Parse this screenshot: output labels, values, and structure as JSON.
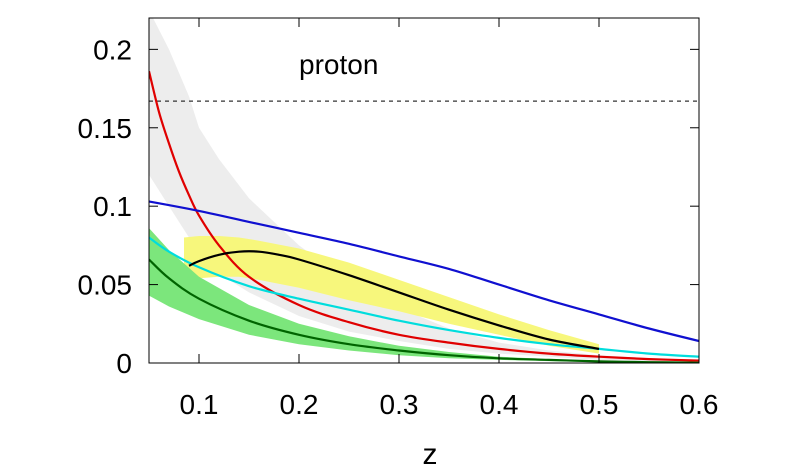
{
  "chart_data": {
    "type": "line",
    "title": "",
    "xlabel": "z",
    "ylabel": "",
    "xlim": [
      0.05,
      0.6
    ],
    "ylim": [
      0,
      0.22
    ],
    "x_ticks": [
      0.1,
      0.2,
      0.3,
      0.4,
      0.5,
      0.6
    ],
    "x_tick_labels": [
      "0.1",
      "0.2",
      "0.3",
      "0.4",
      "0.5",
      "0.6"
    ],
    "y_ticks": [
      0,
      0.05,
      0.1,
      0.15,
      0.2
    ],
    "y_tick_labels": [
      "0",
      "0.05",
      "0.1",
      "0.15",
      "0.2"
    ],
    "grid": false,
    "legend": "none",
    "annotations": [
      {
        "text": "proton",
        "x": 0.2,
        "y": 0.19
      }
    ],
    "reference_line": {
      "y": 0.167,
      "style": "dashed",
      "color": "#333333"
    },
    "bands": [
      {
        "color": "#ededed",
        "x": [
          0.05,
          0.07,
          0.09,
          0.1,
          0.12,
          0.15,
          0.2,
          0.25,
          0.3,
          0.35,
          0.4,
          0.45,
          0.5,
          0.55,
          0.6
        ],
        "upper": [
          0.225,
          0.2,
          0.17,
          0.15,
          0.13,
          0.105,
          0.075,
          0.052,
          0.035,
          0.022,
          0.013,
          0.008,
          0.005,
          0.003,
          0.002
        ],
        "lower": [
          0.12,
          0.1,
          0.08,
          0.07,
          0.057,
          0.045,
          0.03,
          0.02,
          0.014,
          0.009,
          0.006,
          0.004,
          0.002,
          0.001,
          0.0
        ]
      },
      {
        "color": "#f7f77c",
        "x": [
          0.085,
          0.1,
          0.12,
          0.14,
          0.16,
          0.2,
          0.25,
          0.3,
          0.35,
          0.4,
          0.45,
          0.5
        ],
        "upper": [
          0.08,
          0.081,
          0.081,
          0.08,
          0.078,
          0.073,
          0.064,
          0.053,
          0.042,
          0.031,
          0.021,
          0.012
        ],
        "lower": [
          0.052,
          0.054,
          0.055,
          0.055,
          0.053,
          0.048,
          0.04,
          0.033,
          0.025,
          0.018,
          0.011,
          0.006
        ]
      },
      {
        "color": "#7ce67c",
        "x": [
          0.05,
          0.07,
          0.1,
          0.15,
          0.2,
          0.25,
          0.3,
          0.35,
          0.4,
          0.45,
          0.5,
          0.55,
          0.6
        ],
        "upper": [
          0.086,
          0.072,
          0.055,
          0.037,
          0.025,
          0.017,
          0.011,
          0.007,
          0.004,
          0.0025,
          0.0015,
          0.0008,
          0.0004
        ],
        "lower": [
          0.043,
          0.036,
          0.028,
          0.018,
          0.012,
          0.008,
          0.005,
          0.003,
          0.002,
          0.0012,
          0.0006,
          0.0003,
          0.0001
        ]
      }
    ],
    "series": [
      {
        "color": "#e00000",
        "x": [
          0.05,
          0.06,
          0.07,
          0.08,
          0.09,
          0.1,
          0.12,
          0.15,
          0.2,
          0.25,
          0.3,
          0.35,
          0.4,
          0.45,
          0.5,
          0.55,
          0.6
        ],
        "y": [
          0.186,
          0.16,
          0.14,
          0.122,
          0.107,
          0.094,
          0.075,
          0.055,
          0.037,
          0.026,
          0.018,
          0.013,
          0.009,
          0.006,
          0.004,
          0.0025,
          0.0015
        ]
      },
      {
        "color": "#1010d0",
        "x": [
          0.05,
          0.1,
          0.15,
          0.2,
          0.25,
          0.3,
          0.35,
          0.4,
          0.45,
          0.5,
          0.55,
          0.6
        ],
        "y": [
          0.103,
          0.097,
          0.09,
          0.083,
          0.076,
          0.068,
          0.06,
          0.05,
          0.04,
          0.031,
          0.022,
          0.014
        ]
      },
      {
        "color": "#00dddd",
        "x": [
          0.05,
          0.07,
          0.1,
          0.15,
          0.2,
          0.25,
          0.3,
          0.35,
          0.4,
          0.45,
          0.5,
          0.55,
          0.6
        ],
        "y": [
          0.08,
          0.071,
          0.061,
          0.049,
          0.041,
          0.034,
          0.027,
          0.021,
          0.016,
          0.012,
          0.009,
          0.006,
          0.004
        ]
      },
      {
        "color": "#000000",
        "x": [
          0.09,
          0.1,
          0.12,
          0.14,
          0.16,
          0.18,
          0.2,
          0.25,
          0.3,
          0.35,
          0.4,
          0.45,
          0.5
        ],
        "y": [
          0.062,
          0.065,
          0.069,
          0.071,
          0.071,
          0.069,
          0.066,
          0.056,
          0.045,
          0.034,
          0.024,
          0.015,
          0.009
        ]
      },
      {
        "color": "#006400",
        "x": [
          0.05,
          0.07,
          0.1,
          0.15,
          0.2,
          0.25,
          0.3,
          0.35,
          0.4,
          0.45,
          0.5,
          0.55,
          0.6
        ],
        "y": [
          0.066,
          0.054,
          0.041,
          0.027,
          0.018,
          0.012,
          0.008,
          0.005,
          0.003,
          0.002,
          0.001,
          0.0005,
          0.0002
        ]
      }
    ]
  }
}
